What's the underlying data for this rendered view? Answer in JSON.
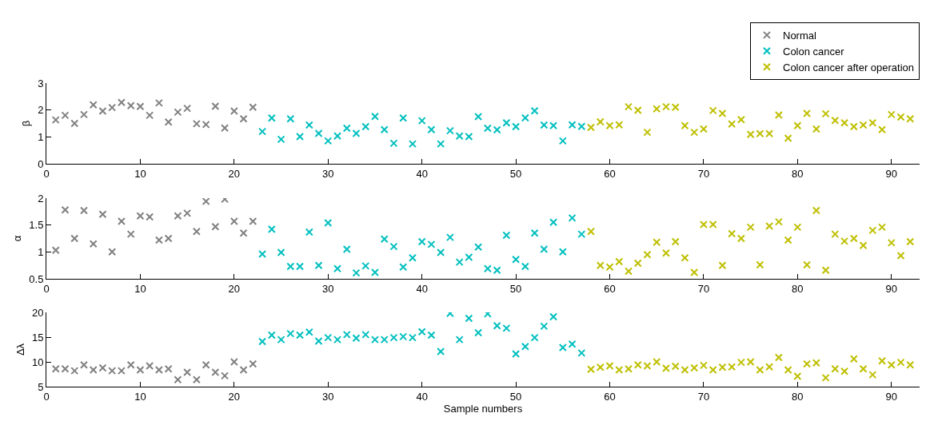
{
  "chart_data": [
    {
      "type": "scatter",
      "ylabel": "β",
      "ylim": [
        0,
        3
      ],
      "yticks": [
        0,
        1,
        2,
        3
      ],
      "xlim": [
        0,
        93
      ],
      "xticks": [
        0,
        10,
        20,
        30,
        40,
        50,
        60,
        70,
        80,
        90
      ],
      "grid": false,
      "legend": "top right",
      "marker": "cross",
      "series": [
        {
          "name": "Normal",
          "color": "#808080",
          "x": [
            1,
            2,
            3,
            4,
            5,
            6,
            7,
            8,
            9,
            10,
            11,
            12,
            13,
            14,
            15,
            16,
            17,
            18,
            19,
            20,
            21,
            22
          ],
          "values": [
            1.63,
            1.8,
            1.5,
            1.83,
            2.19,
            1.96,
            2.09,
            2.28,
            2.16,
            2.13,
            1.8,
            2.26,
            1.55,
            1.92,
            2.06,
            1.49,
            1.46,
            2.14,
            1.33,
            1.96,
            1.67,
            2.1
          ]
        },
        {
          "name": "Colon cancer",
          "color": "#00bfbf",
          "x": [
            23,
            24,
            25,
            26,
            27,
            28,
            29,
            30,
            31,
            32,
            33,
            34,
            35,
            36,
            37,
            38,
            39,
            40,
            41,
            42,
            43,
            44,
            45,
            46,
            47,
            48,
            49,
            50,
            51,
            52,
            53,
            54,
            55,
            56,
            57
          ],
          "values": [
            1.2,
            1.7,
            0.91,
            1.67,
            1.01,
            1.44,
            1.13,
            0.85,
            1.03,
            1.32,
            1.13,
            1.38,
            1.76,
            1.27,
            0.76,
            1.7,
            0.74,
            1.6,
            1.27,
            0.74,
            1.23,
            1.03,
            1.01,
            1.75,
            1.32,
            1.26,
            1.52,
            1.38,
            1.71,
            1.97,
            1.44,
            1.42,
            0.85,
            1.45,
            1.39
          ]
        },
        {
          "name": "Colon cancer after operation",
          "color": "#bfbf00",
          "x": [
            58,
            59,
            60,
            61,
            62,
            63,
            64,
            65,
            66,
            67,
            68,
            69,
            70,
            71,
            72,
            73,
            74,
            75,
            76,
            77,
            78,
            79,
            80,
            81,
            82,
            83,
            84,
            85,
            86,
            87,
            88,
            89,
            90,
            91,
            92
          ],
          "values": [
            1.35,
            1.56,
            1.42,
            1.45,
            2.12,
            1.99,
            1.17,
            2.04,
            2.12,
            2.1,
            1.42,
            1.17,
            1.29,
            1.98,
            1.87,
            1.48,
            1.64,
            1.09,
            1.12,
            1.12,
            1.81,
            0.95,
            1.42,
            1.87,
            1.29,
            1.86,
            1.61,
            1.52,
            1.38,
            1.44,
            1.52,
            1.27,
            1.83,
            1.74,
            1.67
          ]
        }
      ]
    },
    {
      "type": "scatter",
      "ylabel": "α",
      "ylim": [
        0.5,
        2
      ],
      "yticks": [
        {
          "value": 0.5,
          "label": "0.5"
        },
        1,
        1.5,
        2
      ],
      "xlim": [
        0,
        93
      ],
      "xticks": [
        0,
        10,
        20,
        30,
        40,
        50,
        60,
        70,
        80,
        90
      ],
      "grid": false,
      "legend": false,
      "marker": "cross",
      "series": [
        {
          "color": "#808080",
          "x": [
            1,
            2,
            3,
            4,
            5,
            6,
            7,
            8,
            9,
            10,
            11,
            12,
            13,
            14,
            15,
            16,
            17,
            18,
            19,
            20,
            21,
            22
          ],
          "values": [
            1.03,
            1.78,
            1.25,
            1.77,
            1.15,
            1.7,
            1.0,
            1.57,
            1.33,
            1.67,
            1.65,
            1.22,
            1.25,
            1.67,
            1.72,
            1.38,
            1.94,
            1.47,
            1.98,
            1.57,
            1.35,
            1.57
          ]
        },
        {
          "color": "#00bfbf",
          "x": [
            23,
            24,
            25,
            26,
            27,
            28,
            29,
            30,
            31,
            32,
            33,
            34,
            35,
            36,
            37,
            38,
            39,
            40,
            41,
            42,
            43,
            44,
            45,
            46,
            47,
            48,
            49,
            50,
            51,
            52,
            53,
            54,
            55,
            56,
            57
          ],
          "values": [
            0.96,
            1.42,
            0.99,
            0.73,
            0.73,
            1.37,
            0.75,
            1.54,
            0.69,
            1.05,
            0.61,
            0.74,
            0.62,
            1.24,
            1.1,
            0.72,
            0.89,
            1.19,
            1.14,
            0.99,
            1.27,
            0.81,
            0.9,
            1.09,
            0.69,
            0.66,
            1.31,
            0.86,
            0.73,
            1.35,
            1.05,
            1.55,
            1.0,
            1.63,
            1.33
          ]
        },
        {
          "color": "#bfbf00",
          "x": [
            58,
            59,
            60,
            61,
            62,
            63,
            64,
            65,
            66,
            67,
            68,
            69,
            70,
            71,
            72,
            73,
            74,
            75,
            76,
            77,
            78,
            79,
            80,
            81,
            82,
            83,
            84,
            85,
            86,
            87,
            88,
            89,
            90,
            91,
            92
          ],
          "values": [
            1.38,
            0.75,
            0.72,
            0.82,
            0.64,
            0.79,
            0.95,
            1.18,
            0.98,
            1.19,
            0.89,
            0.62,
            1.51,
            1.51,
            0.75,
            1.34,
            1.25,
            1.46,
            0.76,
            1.48,
            1.56,
            1.22,
            1.46,
            0.76,
            1.77,
            0.66,
            1.33,
            1.2,
            1.25,
            1.12,
            1.4,
            1.46,
            1.17,
            0.93,
            1.19
          ]
        }
      ]
    },
    {
      "type": "scatter",
      "ylabel": "Δλ",
      "xlabel": "Sample numbers",
      "ylim": [
        5,
        20
      ],
      "yticks": [
        5,
        10,
        15,
        20
      ],
      "xlim": [
        0,
        93
      ],
      "xticks": [
        0,
        10,
        20,
        30,
        40,
        50,
        60,
        70,
        80,
        90
      ],
      "grid": false,
      "legend": false,
      "marker": "cross",
      "series": [
        {
          "color": "#808080",
          "x": [
            1,
            2,
            3,
            4,
            5,
            6,
            7,
            8,
            9,
            10,
            11,
            12,
            13,
            14,
            15,
            16,
            17,
            18,
            19,
            20,
            21,
            22
          ],
          "values": [
            8.6,
            8.6,
            8.2,
            9.4,
            8.4,
            8.8,
            8.2,
            8.2,
            9.4,
            8.4,
            9.2,
            8.4,
            8.6,
            6.4,
            7.9,
            6.4,
            9.4,
            7.9,
            7.2,
            10.0,
            8.4,
            9.6
          ]
        },
        {
          "color": "#00bfbf",
          "x": [
            23,
            24,
            25,
            26,
            27,
            28,
            29,
            30,
            31,
            32,
            33,
            34,
            35,
            36,
            37,
            38,
            39,
            40,
            41,
            42,
            43,
            44,
            45,
            46,
            47,
            48,
            49,
            50,
            51,
            52,
            53,
            54,
            55,
            56,
            57
          ],
          "values": [
            14.1,
            15.4,
            14.5,
            15.7,
            15.4,
            16.0,
            14.2,
            14.9,
            14.5,
            15.5,
            14.8,
            15.5,
            14.5,
            14.5,
            14.9,
            15.1,
            14.9,
            16.1,
            15.4,
            12.1,
            19.8,
            14.5,
            18.8,
            15.9,
            19.7,
            17.3,
            16.8,
            11.6,
            13.1,
            14.9,
            17.2,
            19.1,
            12.9,
            13.6,
            11.8
          ]
        },
        {
          "color": "#bfbf00",
          "x": [
            58,
            59,
            60,
            61,
            62,
            63,
            64,
            65,
            66,
            67,
            68,
            69,
            70,
            71,
            72,
            73,
            74,
            75,
            76,
            77,
            78,
            79,
            80,
            81,
            82,
            83,
            84,
            85,
            86,
            87,
            88,
            89,
            90,
            91,
            92
          ],
          "values": [
            8.5,
            8.9,
            9.2,
            8.4,
            8.6,
            9.4,
            9.2,
            10.0,
            8.7,
            9.1,
            8.4,
            8.8,
            9.3,
            8.4,
            8.9,
            9.0,
            9.9,
            10.0,
            8.4,
            9.0,
            10.9,
            8.4,
            7.1,
            9.6,
            9.8,
            6.8,
            8.6,
            8.1,
            10.6,
            8.6,
            7.4,
            10.2,
            9.4,
            9.9,
            9.4
          ]
        }
      ]
    }
  ]
}
